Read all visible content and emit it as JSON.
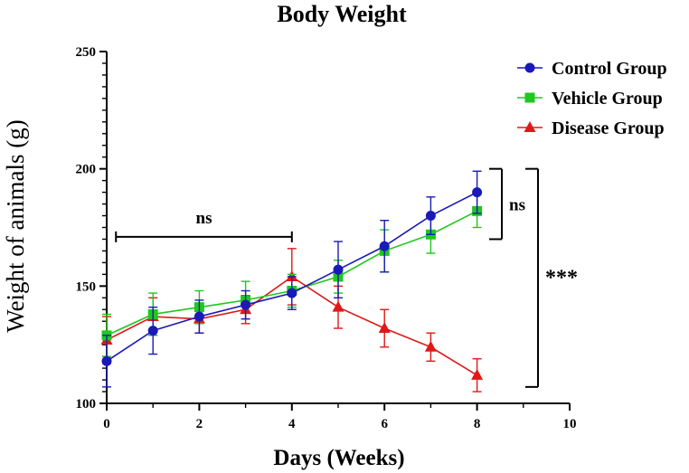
{
  "chart_data": {
    "type": "line",
    "title": "Body Weight",
    "xlabel": "Days (Weeks)",
    "ylabel": "Weight of animals (g)",
    "xlim": [
      0,
      10
    ],
    "ylim": [
      100,
      250
    ],
    "xticks": [
      "0",
      "2",
      "4",
      "6",
      "8",
      "10"
    ],
    "yticks": [
      "100",
      "150",
      "200",
      "250"
    ],
    "grid": false,
    "legend_position": "top-right",
    "series": [
      {
        "name": "Control Group",
        "color": "#1a1ab8",
        "marker": "circle",
        "x": [
          0,
          1,
          2,
          3,
          4,
          5,
          6,
          7,
          8
        ],
        "y": [
          118,
          131,
          137,
          142,
          147,
          157,
          167,
          180,
          190
        ],
        "err": [
          11,
          10,
          7,
          6,
          7,
          12,
          11,
          8,
          9
        ]
      },
      {
        "name": "Vehicle Group",
        "color": "#1ec81e",
        "marker": "square",
        "x": [
          0,
          1,
          2,
          3,
          4,
          5,
          6,
          7,
          8
        ],
        "y": [
          129,
          138,
          141,
          144,
          148,
          154,
          165,
          172,
          182
        ],
        "err": [
          9,
          9,
          7,
          8,
          7,
          7,
          9,
          8,
          7
        ]
      },
      {
        "name": "Disease Group",
        "color": "#e01818",
        "marker": "triangle",
        "x": [
          0,
          1,
          2,
          3,
          4,
          5,
          6,
          7,
          8
        ],
        "y": [
          127,
          137,
          136,
          140,
          154,
          141,
          132,
          124,
          112
        ],
        "err": [
          10,
          8,
          6,
          6,
          12,
          9,
          8,
          6,
          7
        ]
      }
    ],
    "annotations": [
      {
        "text": "ns",
        "kind": "horizontal-bracket",
        "x_from": 0.2,
        "x_to": 4,
        "y": 171
      },
      {
        "text": "ns",
        "kind": "vertical-bracket",
        "y_from": 170,
        "y_to": 200
      },
      {
        "text": "***",
        "kind": "vertical-bracket",
        "y_from": 107,
        "y_to": 200
      }
    ]
  }
}
